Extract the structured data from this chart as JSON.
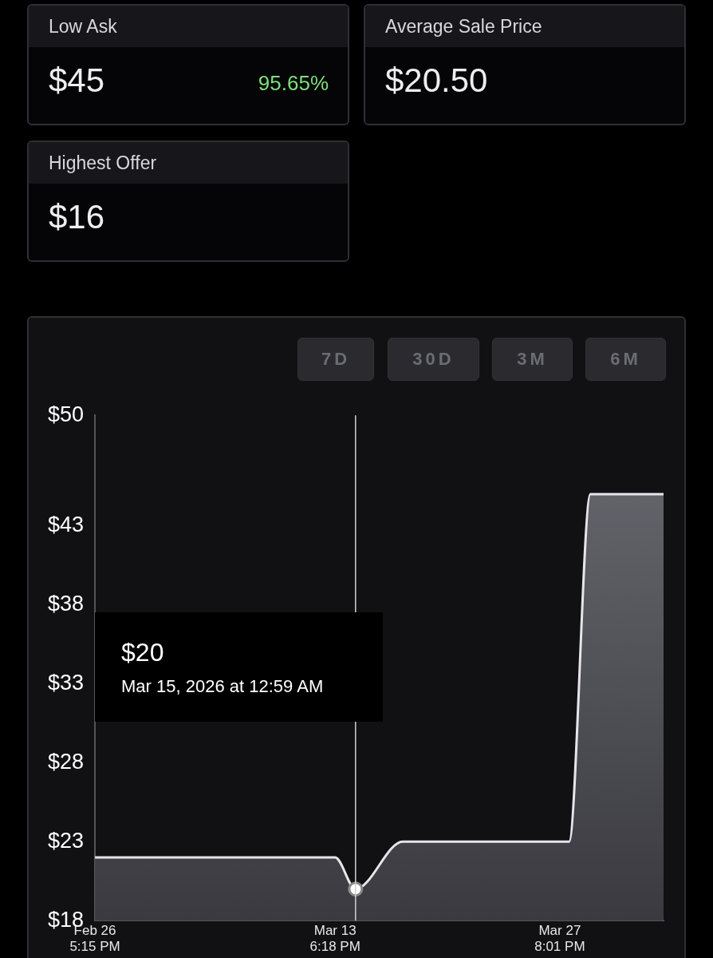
{
  "chart_data": [
    {
      "type": "other",
      "annotations": [
        "Low Ask",
        "$45",
        "95.65%",
        "Average Sale Price",
        "$20.50",
        "Highest Offer",
        "$16"
      ]
    },
    {
      "type": "area",
      "x": [
        "2026-02-26T17:15",
        "2026-03-13T18:18",
        "2026-03-15T00:59",
        "2026-03-18T00:00",
        "2026-03-28T10:00",
        "2026-03-29T18:00",
        "2026-04-03T08:00"
      ],
      "series": [
        {
          "color": "#e6e6ea",
          "values": [
            22,
            22,
            20,
            23,
            23,
            45,
            45
          ]
        }
      ],
      "xlim": [
        "2026-02-26T17:15",
        "2026-04-03T08:00"
      ],
      "xticks": [
        {
          "value": "2026-02-26T17:15",
          "label": "Feb 26\n5:15 PM"
        },
        {
          "value": "2026-03-13T18:18",
          "label": "Mar 13\n6:18 PM"
        },
        {
          "value": "2026-03-27T20:01",
          "label": "Mar 27\n8:01 PM"
        }
      ],
      "ylim": [
        18,
        50
      ],
      "yticks": [
        {
          "value": 18,
          "label": "$18"
        },
        {
          "value": 23,
          "label": "$23"
        },
        {
          "value": 28,
          "label": "$28"
        },
        {
          "value": 33,
          "label": "$33"
        },
        {
          "value": 38,
          "label": "$38"
        },
        {
          "value": 43,
          "label": "$43"
        },
        {
          "value": 50,
          "label": "$50"
        }
      ],
      "grid": false,
      "legend": false,
      "marker": "none",
      "line_style": "solid",
      "ref_lines": [
        {
          "axis": "x",
          "value": "2026-03-15T00:59",
          "color": "#d0d0d4"
        }
      ],
      "annotations": [
        "7D",
        "30D",
        "3M",
        "6M",
        "$20",
        "Mar 15, 2026 at 12:59 AM"
      ]
    }
  ]
}
